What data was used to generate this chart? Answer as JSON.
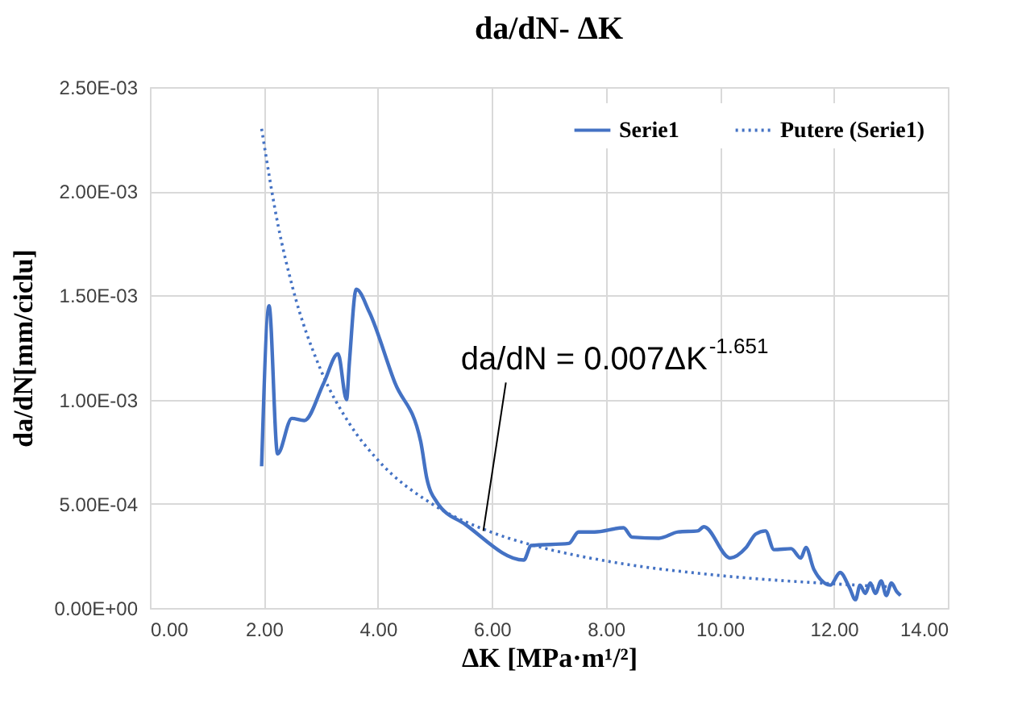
{
  "chart_data": {
    "type": "line",
    "title": "da/dN- ΔK",
    "xlabel": "ΔK [MPa·m¹/²]",
    "ylabel": "da/dN[mm/ciclu]",
    "xlim": [
      0,
      14
    ],
    "xticks": [
      {
        "value": 0,
        "label": "0.00"
      },
      {
        "value": 2,
        "label": "2.00"
      },
      {
        "value": 4,
        "label": "4.00"
      },
      {
        "value": 6,
        "label": "6.00"
      },
      {
        "value": 8,
        "label": "8.00"
      },
      {
        "value": 10,
        "label": "10.00"
      },
      {
        "value": 12,
        "label": "12.00"
      },
      {
        "value": 14,
        "label": "14.00"
      }
    ],
    "ylim": [
      0,
      0.0025
    ],
    "yticks": [
      {
        "value": 0,
        "label": "0.00E+00"
      },
      {
        "value": 0.0005,
        "label": "5.00E-04"
      },
      {
        "value": 0.001,
        "label": "1.00E-03"
      },
      {
        "value": 0.0015,
        "label": "1.50E-03"
      },
      {
        "value": 0.002,
        "label": "2.00E-03"
      },
      {
        "value": 0.0025,
        "label": "2.50E-03"
      }
    ],
    "grid": true,
    "legend": "top right",
    "series": [
      {
        "name": "Serie1",
        "color": "#4472c4",
        "line_style": "solid",
        "x": [
          1.96,
          2.09,
          2.24,
          2.49,
          2.71,
          3.05,
          3.3,
          3.45,
          3.5,
          3.62,
          3.85,
          4.3,
          4.75,
          4.86,
          5.03,
          5.54,
          6.56,
          6.69,
          7.35,
          7.52,
          7.8,
          8.31,
          8.46,
          8.93,
          9.27,
          9.61,
          9.72,
          10.18,
          10.46,
          10.63,
          10.8,
          10.95,
          11.25,
          11.42,
          11.51,
          11.65,
          11.94,
          12.11,
          12.27,
          12.38,
          12.46,
          12.55,
          12.64,
          12.73,
          12.83,
          12.92,
          13.01,
          13.1,
          13.17
        ],
        "values": [
          0.00068,
          0.00145,
          0.00074,
          0.00091,
          0.0009,
          0.00108,
          0.00122,
          0.001,
          0.00118,
          0.00153,
          0.00142,
          0.00108,
          0.0008,
          0.00062,
          0.00051,
          0.0004,
          0.00023,
          0.0003,
          0.00031,
          0.000365,
          0.000365,
          0.000385,
          0.00034,
          0.000335,
          0.000365,
          0.00037,
          0.00039,
          0.00024,
          0.00029,
          0.000355,
          0.00037,
          0.00028,
          0.000285,
          0.00024,
          0.00029,
          0.000185,
          0.00011,
          0.00017,
          0.0001,
          4e-05,
          0.00011,
          7e-05,
          0.00012,
          7e-05,
          0.00013,
          6e-05,
          0.00012,
          8e-05,
          6e-05
        ]
      },
      {
        "name": "Putere (Serie1)",
        "color": "#4472c4",
        "line_style": "dotted",
        "x": [
          1.96,
          2.25,
          2.5,
          3,
          3.5,
          4,
          5,
          6,
          7,
          8,
          10,
          12,
          12.95
        ],
        "values": [
          0.0023,
          0.001835,
          0.001542,
          0.001141,
          0.000885,
          0.00071,
          0.000491,
          0.000363,
          0.000282,
          0.000226,
          0.000156,
          0.000116,
          0.000102
        ]
      }
    ],
    "annotations": [
      {
        "text": "da/dN = 0.007ΔK$^{-1.651}$",
        "x": 5.85,
        "y": 0.00037
      }
    ]
  }
}
